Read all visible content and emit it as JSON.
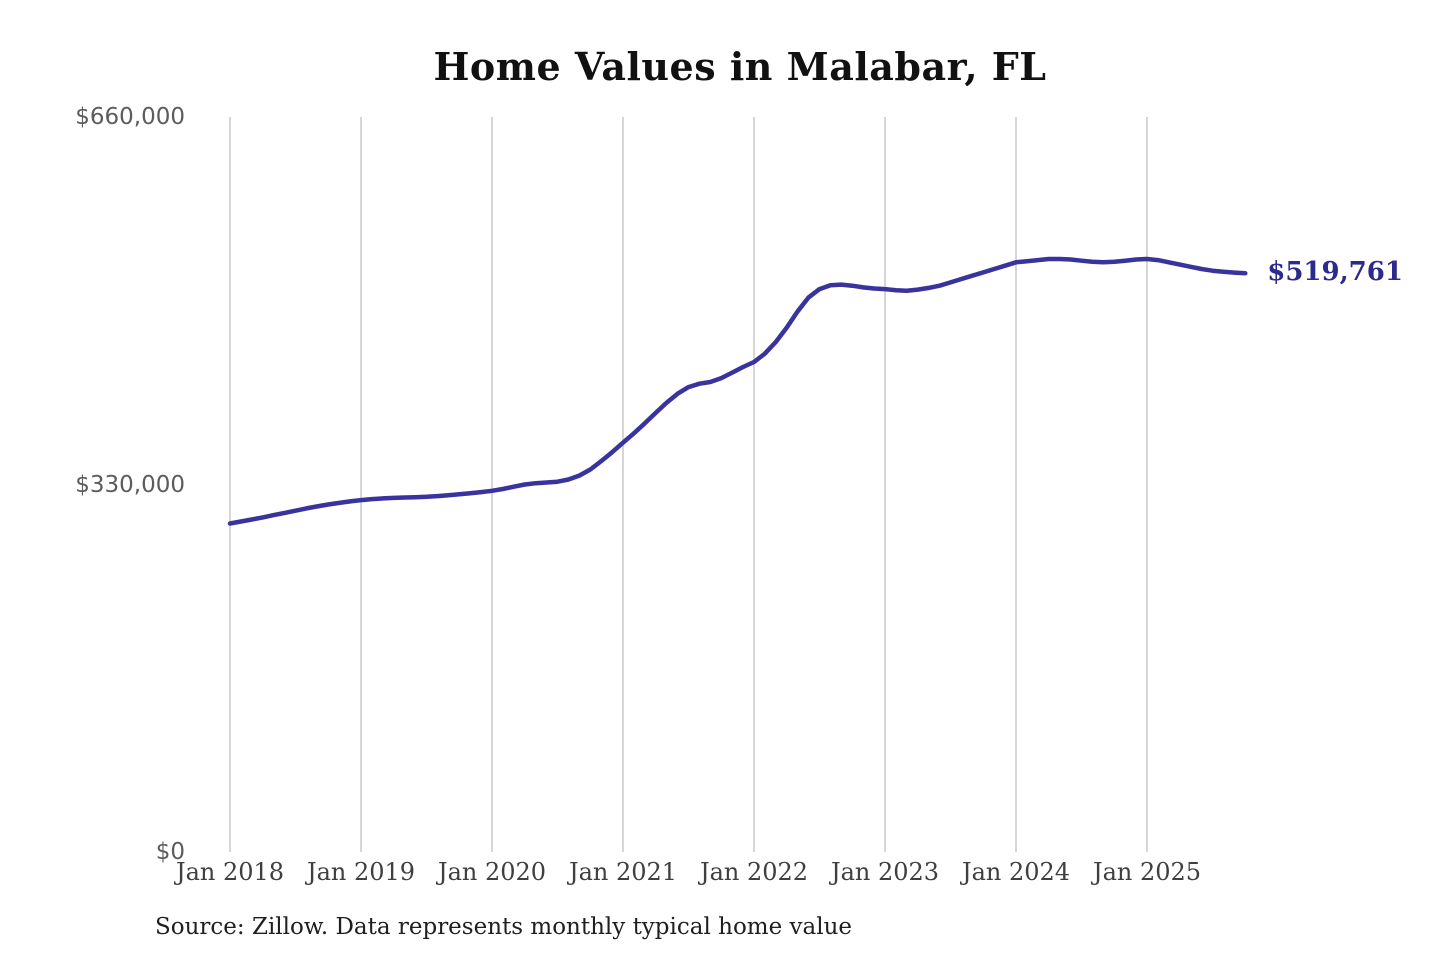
{
  "title": "Home Values in Malabar, FL",
  "source": "Source: Zillow. Data represents monthly typical home value",
  "end_label": "$519,761",
  "colors": {
    "line": "#39339e",
    "end_label": "#2d2a8e",
    "gridline": "#c9c9c9",
    "title_text": "#111111",
    "y_tick_text": "#5c5c5c",
    "x_tick_text": "#3f3f3f"
  },
  "chart_data": {
    "type": "line",
    "title": "Home Values in Malabar, FL",
    "xlabel": "",
    "ylabel": "",
    "ylim": [
      0,
      660000
    ],
    "grid": "vertical-only",
    "legend": "none",
    "line_color": "#39339e",
    "end_label": "$519,761",
    "end_value": 519761,
    "y_ticks": [
      {
        "label": "$660,000",
        "value": 660000
      },
      {
        "label": "$330,000",
        "value": 330000
      },
      {
        "label": "$0",
        "value": 0
      }
    ],
    "x_ticks": [
      {
        "label": "Jan 2018",
        "month_index": 0
      },
      {
        "label": "Jan 2019",
        "month_index": 12
      },
      {
        "label": "Jan 2020",
        "month_index": 24
      },
      {
        "label": "Jan 2021",
        "month_index": 36
      },
      {
        "label": "Jan 2022",
        "month_index": 48
      },
      {
        "label": "Jan 2023",
        "month_index": 60
      },
      {
        "label": "Jan 2024",
        "month_index": 72
      },
      {
        "label": "Jan 2025",
        "month_index": 84
      }
    ],
    "x": [
      "2018-01",
      "2018-02",
      "2018-03",
      "2018-04",
      "2018-05",
      "2018-06",
      "2018-07",
      "2018-08",
      "2018-09",
      "2018-10",
      "2018-11",
      "2018-12",
      "2019-01",
      "2019-02",
      "2019-03",
      "2019-04",
      "2019-05",
      "2019-06",
      "2019-07",
      "2019-08",
      "2019-09",
      "2019-10",
      "2019-11",
      "2019-12",
      "2020-01",
      "2020-02",
      "2020-03",
      "2020-04",
      "2020-05",
      "2020-06",
      "2020-07",
      "2020-08",
      "2020-09",
      "2020-10",
      "2020-11",
      "2020-12",
      "2021-01",
      "2021-02",
      "2021-03",
      "2021-04",
      "2021-05",
      "2021-06",
      "2021-07",
      "2021-08",
      "2021-09",
      "2021-10",
      "2021-11",
      "2021-12",
      "2022-01",
      "2022-02",
      "2022-03",
      "2022-04",
      "2022-05",
      "2022-06",
      "2022-07",
      "2022-08",
      "2022-09",
      "2022-10",
      "2022-11",
      "2022-12",
      "2023-01",
      "2023-02",
      "2023-03",
      "2023-04",
      "2023-05",
      "2023-06",
      "2023-07",
      "2023-08",
      "2023-09",
      "2023-10",
      "2023-11",
      "2023-12",
      "2024-01",
      "2024-02",
      "2024-03",
      "2024-04",
      "2024-05",
      "2024-06",
      "2024-07",
      "2024-08",
      "2024-09",
      "2024-10",
      "2024-11",
      "2024-12",
      "2025-01",
      "2025-02",
      "2025-03",
      "2025-04",
      "2025-05",
      "2025-06",
      "2025-07",
      "2025-08",
      "2025-09",
      "2025-10"
    ],
    "values": [
      295000,
      296800,
      298600,
      300500,
      302500,
      304500,
      306500,
      308500,
      310300,
      312000,
      313500,
      314800,
      316000,
      316900,
      317500,
      318000,
      318300,
      318600,
      319000,
      319600,
      320300,
      321200,
      322200,
      323200,
      324300,
      326000,
      328000,
      330000,
      331200,
      331800,
      332500,
      334500,
      338000,
      343500,
      351000,
      359000,
      367500,
      376000,
      385000,
      394500,
      403500,
      411500,
      417500,
      420500,
      422000,
      425500,
      430500,
      435500,
      440000,
      447500,
      458000,
      471000,
      485500,
      498000,
      505500,
      509000,
      509500,
      508500,
      507000,
      506000,
      505500,
      504500,
      504000,
      505000,
      506500,
      508500,
      511500,
      514500,
      517500,
      520500,
      523500,
      526500,
      529500,
      530500,
      531500,
      532500,
      532500,
      532000,
      531000,
      530000,
      529500,
      530000,
      531000,
      532000,
      532500,
      531500,
      529500,
      527500,
      525500,
      523500,
      522000,
      521000,
      520300,
      519761
    ]
  }
}
